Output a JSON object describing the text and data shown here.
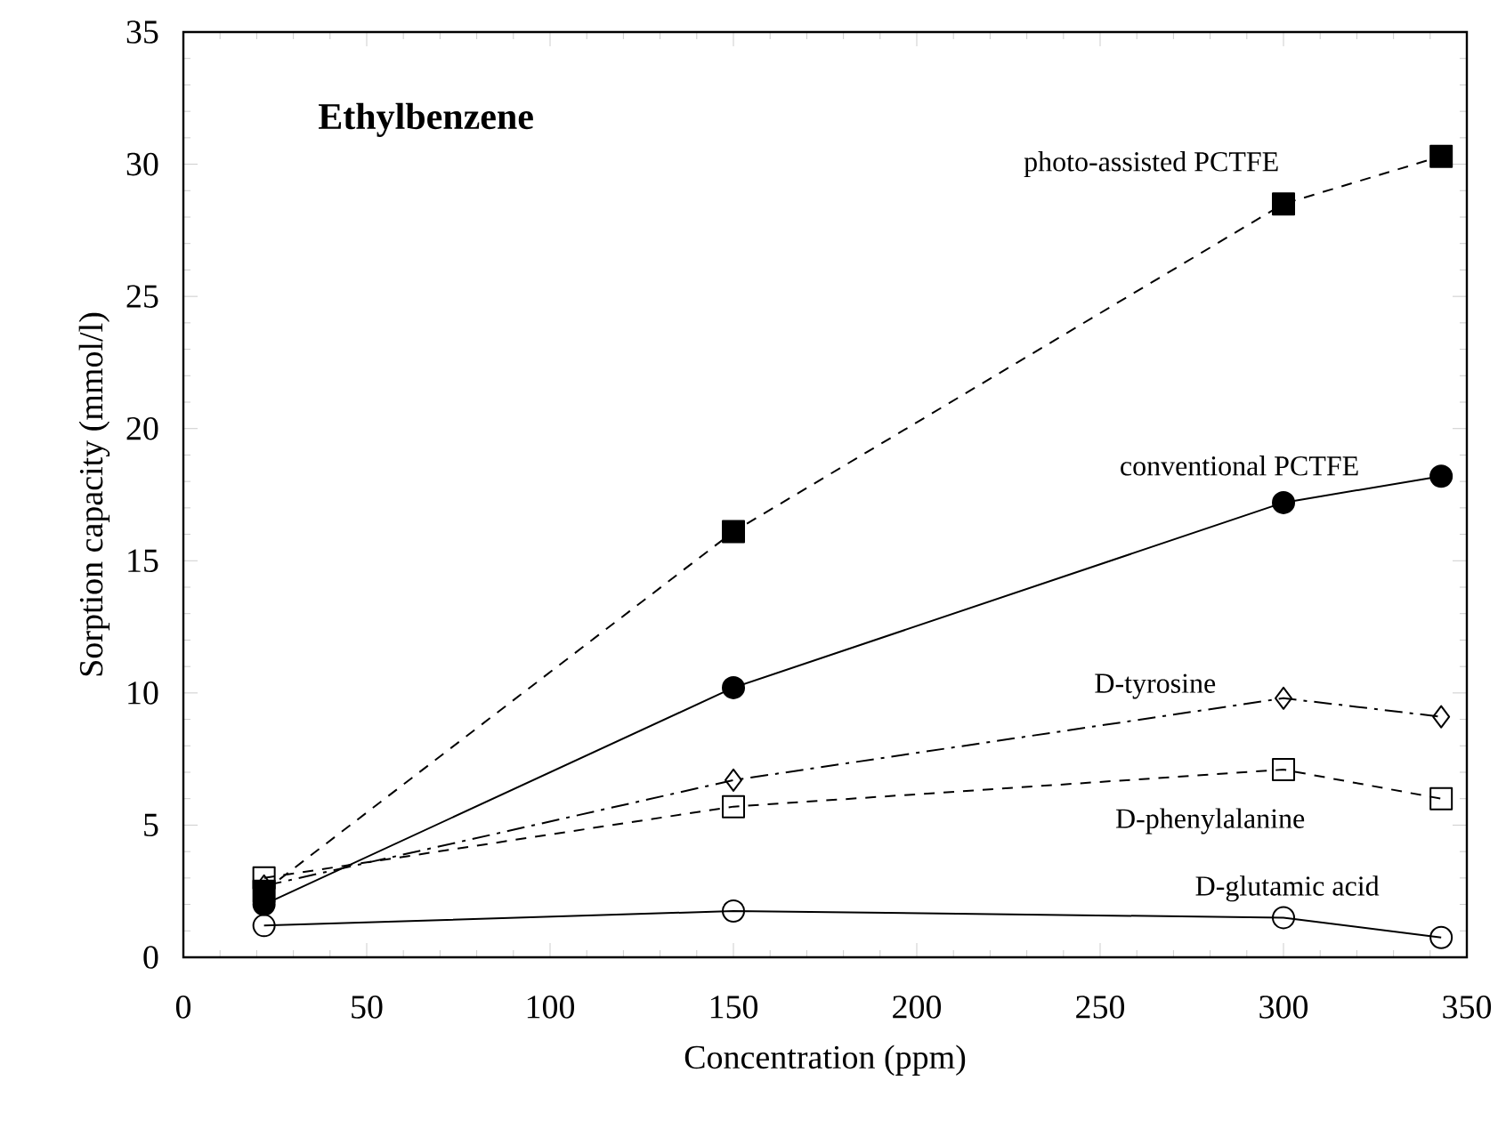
{
  "chart_data": {
    "type": "line",
    "title": "Ethylbenzene",
    "xlabel": "Concentration (ppm)",
    "ylabel": "Sorption capacity (mmol/l)",
    "xlim": [
      0,
      350
    ],
    "xticks": [
      0,
      50,
      100,
      150,
      200,
      250,
      300,
      350
    ],
    "ylim": [
      0,
      35
    ],
    "yticks": [
      0,
      5,
      10,
      15,
      20,
      25,
      30,
      35
    ],
    "grid": false,
    "series": [
      {
        "name": "photo-assisted PCTFE",
        "color": "#000000",
        "x": [
          22,
          150,
          300,
          343
        ],
        "values": [
          2.5,
          16.1,
          28.5,
          30.3
        ],
        "marker": "square",
        "line_style": "dashed"
      },
      {
        "name": "conventional PCTFE",
        "color": "#000000",
        "x": [
          22,
          150,
          300,
          343
        ],
        "values": [
          2.0,
          10.2,
          17.2,
          18.2
        ],
        "marker": "circle",
        "line_style": "solid"
      },
      {
        "name": "D-tyrosine",
        "color": "#000000",
        "x": [
          22,
          150,
          300,
          343
        ],
        "values": [
          2.7,
          6.7,
          9.8,
          9.1
        ],
        "marker": "diamond",
        "line_style": "dashdot"
      },
      {
        "name": "D-phenylalanine",
        "color": "#000000",
        "x": [
          22,
          150,
          300,
          343
        ],
        "values": [
          3.0,
          5.7,
          7.1,
          6.0
        ],
        "marker": "square",
        "line_style": "dashed"
      },
      {
        "name": "D-glutamic acid",
        "color": "#000000",
        "x": [
          22,
          150,
          300,
          343
        ],
        "values": [
          1.2,
          1.75,
          1.5,
          0.75
        ],
        "marker": "circle",
        "line_style": "solid"
      }
    ]
  }
}
